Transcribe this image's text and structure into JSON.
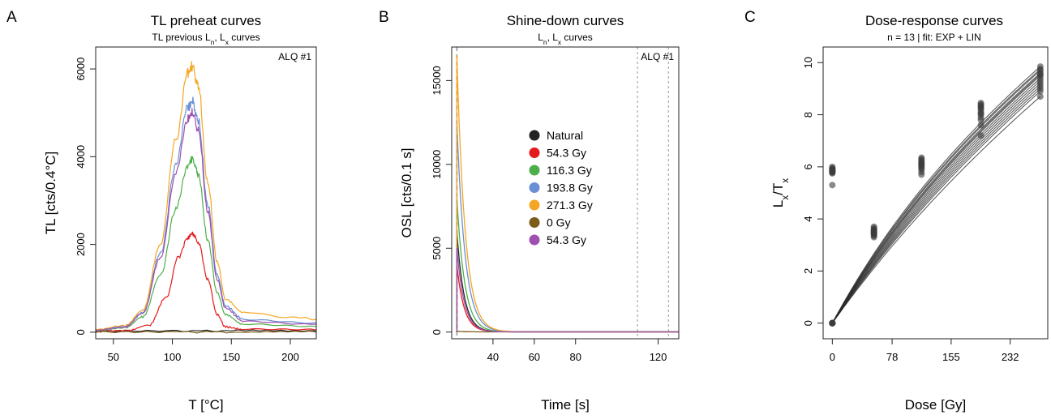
{
  "chart_data": [
    {
      "type": "line",
      "panel_label": "A",
      "title": "TL preheat curves",
      "subtitle": "TL previous Lₙ, Lₓ curves",
      "xlabel": "T [°C]",
      "ylabel": "TL [cts/0.4°C]",
      "annotation": "ALQ #1",
      "xlim": [
        35,
        222
      ],
      "ylim": [
        -150,
        6500
      ],
      "xticks": [
        50,
        100,
        150,
        200
      ],
      "yticks": [
        0,
        2000,
        4000,
        6000
      ],
      "grid": false,
      "series": [
        {
          "color": "#222222",
          "values": [
            [
              35,
              30
            ],
            [
              100,
              30
            ],
            [
              150,
              30
            ],
            [
              222,
              30
            ]
          ]
        },
        {
          "color": "#e41a1c",
          "values": [
            [
              35,
              20
            ],
            [
              60,
              40
            ],
            [
              80,
              150
            ],
            [
              95,
              800
            ],
            [
              105,
              1700
            ],
            [
              113,
              2150
            ],
            [
              117,
              2250
            ],
            [
              122,
              2050
            ],
            [
              130,
              1200
            ],
            [
              138,
              400
            ],
            [
              145,
              120
            ],
            [
              160,
              60
            ],
            [
              222,
              50
            ]
          ]
        },
        {
          "color": "#4daf4a",
          "values": [
            [
              35,
              40
            ],
            [
              60,
              100
            ],
            [
              75,
              350
            ],
            [
              90,
              1300
            ],
            [
              103,
              2800
            ],
            [
              113,
              3800
            ],
            [
              117,
              3950
            ],
            [
              122,
              3600
            ],
            [
              130,
              2100
            ],
            [
              138,
              900
            ],
            [
              145,
              400
            ],
            [
              160,
              180
            ],
            [
              222,
              130
            ]
          ]
        },
        {
          "color": "#6a8fd4",
          "values": [
            [
              35,
              50
            ],
            [
              60,
              130
            ],
            [
              75,
              450
            ],
            [
              90,
              1800
            ],
            [
              103,
              3800
            ],
            [
              113,
              5100
            ],
            [
              117,
              5250
            ],
            [
              122,
              4800
            ],
            [
              130,
              2900
            ],
            [
              138,
              1300
            ],
            [
              145,
              600
            ],
            [
              160,
              300
            ],
            [
              222,
              220
            ]
          ]
        },
        {
          "color": "#f5a623",
          "values": [
            [
              35,
              60
            ],
            [
              60,
              150
            ],
            [
              75,
              500
            ],
            [
              90,
              2000
            ],
            [
              103,
              4400
            ],
            [
              113,
              5900
            ],
            [
              117,
              6050
            ],
            [
              122,
              5600
            ],
            [
              130,
              3400
            ],
            [
              138,
              1600
            ],
            [
              145,
              750
            ],
            [
              160,
              450
            ],
            [
              200,
              350
            ],
            [
              222,
              300
            ]
          ]
        },
        {
          "color": "#7b5c1a",
          "values": [
            [
              35,
              5
            ],
            [
              100,
              5
            ],
            [
              150,
              5
            ],
            [
              222,
              5
            ]
          ]
        },
        {
          "color": "#9e4fb0",
          "values": [
            [
              35,
              45
            ],
            [
              60,
              120
            ],
            [
              75,
              430
            ],
            [
              90,
              1700
            ],
            [
              103,
              3600
            ],
            [
              113,
              4850
            ],
            [
              117,
              5000
            ],
            [
              122,
              4600
            ],
            [
              130,
              2750
            ],
            [
              138,
              1200
            ],
            [
              145,
              550
            ],
            [
              160,
              250
            ],
            [
              222,
              180
            ]
          ]
        }
      ]
    },
    {
      "type": "line",
      "panel_label": "B",
      "title": "Shine-down curves",
      "subtitle": "Lₙ, Lₓ curves",
      "xlabel": "Time [s]",
      "ylabel": "OSL [cts/0.1 s]",
      "annotation": "ALQ #1",
      "xlim": [
        20,
        130
      ],
      "ylim": [
        -400,
        17000
      ],
      "xticks": [
        40,
        60,
        80,
        120
      ],
      "yticks": [
        0,
        5000,
        10000,
        15000
      ],
      "vlines": [
        22.5,
        110,
        125
      ],
      "grid": false,
      "legend_position": "center",
      "legend": [
        "Natural",
        "54.3 Gy",
        "116.3 Gy",
        "193.8 Gy",
        "271.3 Gy",
        "0 Gy",
        "54.3 Gy"
      ],
      "series": [
        {
          "name": "Natural",
          "color": "#222222",
          "peak": 6000,
          "tau": 3.5
        },
        {
          "name": "54.3 Gy",
          "color": "#e41a1c",
          "peak": 4000,
          "tau": 3.5
        },
        {
          "name": "116.3 Gy",
          "color": "#4daf4a",
          "peak": 8000,
          "tau": 3.8
        },
        {
          "name": "193.8 Gy",
          "color": "#6a8fd4",
          "peak": 12500,
          "tau": 4.0
        },
        {
          "name": "271.3 Gy",
          "color": "#f5a623",
          "peak": 16500,
          "tau": 4.0
        },
        {
          "name": "0 Gy",
          "color": "#7b5c1a",
          "peak": 40,
          "tau": 3.5
        },
        {
          "name": "54.3 Gy",
          "color": "#9e4fb0",
          "peak": 5000,
          "tau": 3.5
        }
      ]
    },
    {
      "type": "scatter",
      "panel_label": "C",
      "title": "Dose-response curves",
      "subtitle": "n = 13 | fit: EXP + LIN",
      "xlabel": "Dose [Gy]",
      "ylabel": "Lₓ/Tₓ",
      "xlim": [
        -12,
        281
      ],
      "ylim": [
        -0.6,
        10.6
      ],
      "xticks": [
        0,
        78,
        155,
        232
      ],
      "yticks": [
        0,
        2,
        4,
        6,
        8,
        10
      ],
      "grid": false,
      "doses": [
        0,
        54.3,
        116.3,
        193.8,
        271.3
      ],
      "fit_curve_end_values": [
        8.7,
        8.9,
        9.0,
        9.1,
        9.2,
        9.3,
        9.4,
        9.5,
        9.55,
        9.6,
        9.7,
        9.75,
        9.85
      ],
      "points": [
        {
          "x": 0,
          "y": [
            5.3,
            5.75,
            5.8,
            5.85,
            5.9,
            5.95,
            6.0,
            5.82,
            5.88,
            5.78,
            5.92,
            5.86,
            5.84
          ]
        },
        {
          "x": 0,
          "y": [
            0,
            0,
            0,
            0,
            0,
            0,
            0,
            0,
            0,
            0,
            0,
            0,
            0
          ]
        },
        {
          "x": 54.3,
          "y": [
            3.3,
            3.35,
            3.4,
            3.45,
            3.5,
            3.55,
            3.6,
            3.65,
            3.7,
            3.42,
            3.52,
            3.58,
            3.48
          ]
        },
        {
          "x": 116.3,
          "y": [
            5.7,
            5.8,
            5.9,
            6.0,
            6.05,
            6.1,
            6.15,
            6.2,
            6.25,
            6.3,
            6.35,
            5.95,
            6.12
          ]
        },
        {
          "x": 193.8,
          "y": [
            7.2,
            7.6,
            7.8,
            7.9,
            8.0,
            8.05,
            8.1,
            8.2,
            8.25,
            8.3,
            8.35,
            8.4,
            8.45
          ]
        },
        {
          "x": 271.3,
          "y": [
            8.7,
            8.9,
            9.0,
            9.1,
            9.2,
            9.3,
            9.4,
            9.5,
            9.55,
            9.6,
            9.7,
            9.75,
            9.85
          ]
        }
      ]
    }
  ]
}
